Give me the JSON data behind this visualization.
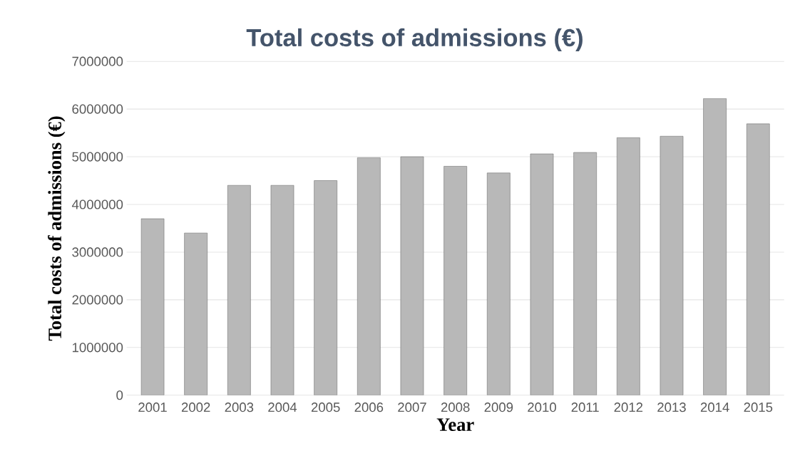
{
  "chart_data": {
    "type": "bar",
    "title": "Total costs of admissions (€)",
    "xlabel": "Year",
    "ylabel": "Total costs of admissions (€)",
    "categories": [
      "2001",
      "2002",
      "2003",
      "2004",
      "2005",
      "2006",
      "2007",
      "2008",
      "2009",
      "2010",
      "2011",
      "2012",
      "2013",
      "2014",
      "2015"
    ],
    "values": [
      3700000,
      3400000,
      4400000,
      4400000,
      4500000,
      4980000,
      5000000,
      4800000,
      4660000,
      5060000,
      5090000,
      5400000,
      5430000,
      6220000,
      5690000
    ],
    "color": "#b8b8b8",
    "ylim": [
      0,
      7000000
    ],
    "yticks": [
      0,
      1000000,
      2000000,
      3000000,
      4000000,
      5000000,
      6000000,
      7000000
    ],
    "grid": "y"
  }
}
